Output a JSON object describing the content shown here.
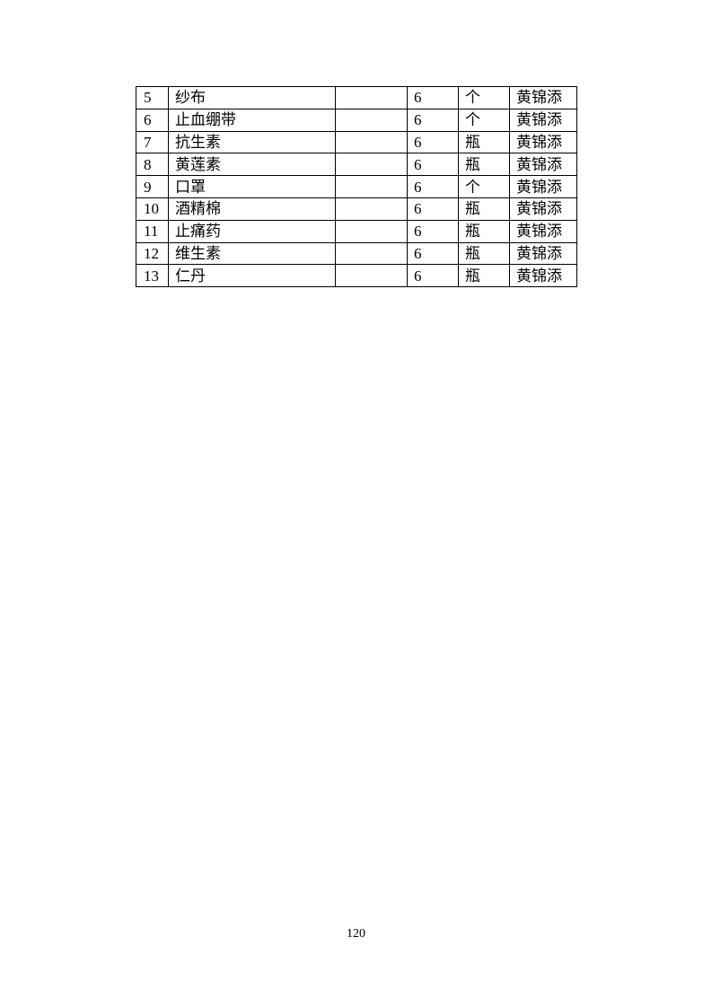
{
  "table": {
    "rows": [
      {
        "no": "5",
        "name": "纱布",
        "spec": "",
        "qty": "6",
        "unit": "个",
        "person": "黄锦添"
      },
      {
        "no": "6",
        "name": "止血绷带",
        "spec": "",
        "qty": "6",
        "unit": "个",
        "person": "黄锦添"
      },
      {
        "no": "7",
        "name": "抗生素",
        "spec": "",
        "qty": "6",
        "unit": "瓶",
        "person": "黄锦添"
      },
      {
        "no": "8",
        "name": "黄莲素",
        "spec": "",
        "qty": "6",
        "unit": "瓶",
        "person": "黄锦添"
      },
      {
        "no": "9",
        "name": "口罩",
        "spec": "",
        "qty": "6",
        "unit": "个",
        "person": "黄锦添"
      },
      {
        "no": "10",
        "name": "酒精棉",
        "spec": "",
        "qty": "6",
        "unit": "瓶",
        "person": "黄锦添"
      },
      {
        "no": "11",
        "name": "止痛药",
        "spec": "",
        "qty": "6",
        "unit": "瓶",
        "person": "黄锦添"
      },
      {
        "no": "12",
        "name": "维生素",
        "spec": "",
        "qty": "6",
        "unit": "瓶",
        "person": "黄锦添"
      },
      {
        "no": "13",
        "name": "仁丹",
        "spec": "",
        "qty": "6",
        "unit": "瓶",
        "person": "黄锦添"
      }
    ]
  },
  "page_number": "120"
}
